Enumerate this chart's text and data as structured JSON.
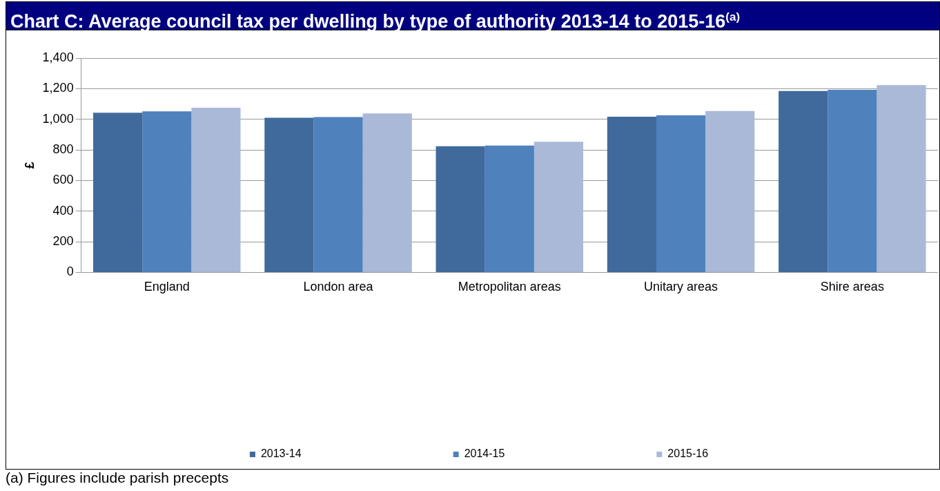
{
  "chart_data": {
    "type": "bar",
    "title": "Chart C: Average council tax per dwelling by type of authority 2013-14 to 2015-16$^{(a)}$",
    "ylabel": "£",
    "categories": [
      "England",
      "London area",
      "Metropolitan areas",
      "Unitary areas",
      "Shire areas"
    ],
    "series": [
      {
        "name": "2013-14",
        "color": "#416a9c",
        "values": [
          1042,
          1010,
          824,
          1017,
          1185
        ]
      },
      {
        "name": "2014-15",
        "color": "#4f81bd",
        "values": [
          1052,
          1014,
          828,
          1026,
          1193
        ]
      },
      {
        "name": "2015-16",
        "color": "#aab9d7",
        "values": [
          1075,
          1038,
          853,
          1054,
          1223
        ]
      }
    ],
    "ylim": [
      0,
      1400
    ],
    "yticks": [
      {
        "value": 0,
        "label": "0"
      },
      {
        "value": 200,
        "label": "200"
      },
      {
        "value": 400,
        "label": "400"
      },
      {
        "value": 600,
        "label": "600"
      },
      {
        "value": 800,
        "label": "800"
      },
      {
        "value": 1000,
        "label": "1,000"
      },
      {
        "value": 1200,
        "label": "1,200"
      },
      {
        "value": 1400,
        "label": "1,400"
      }
    ],
    "grid": "y",
    "legend": "bottom",
    "annotations": [
      "(a) Figures include parish precepts"
    ]
  }
}
